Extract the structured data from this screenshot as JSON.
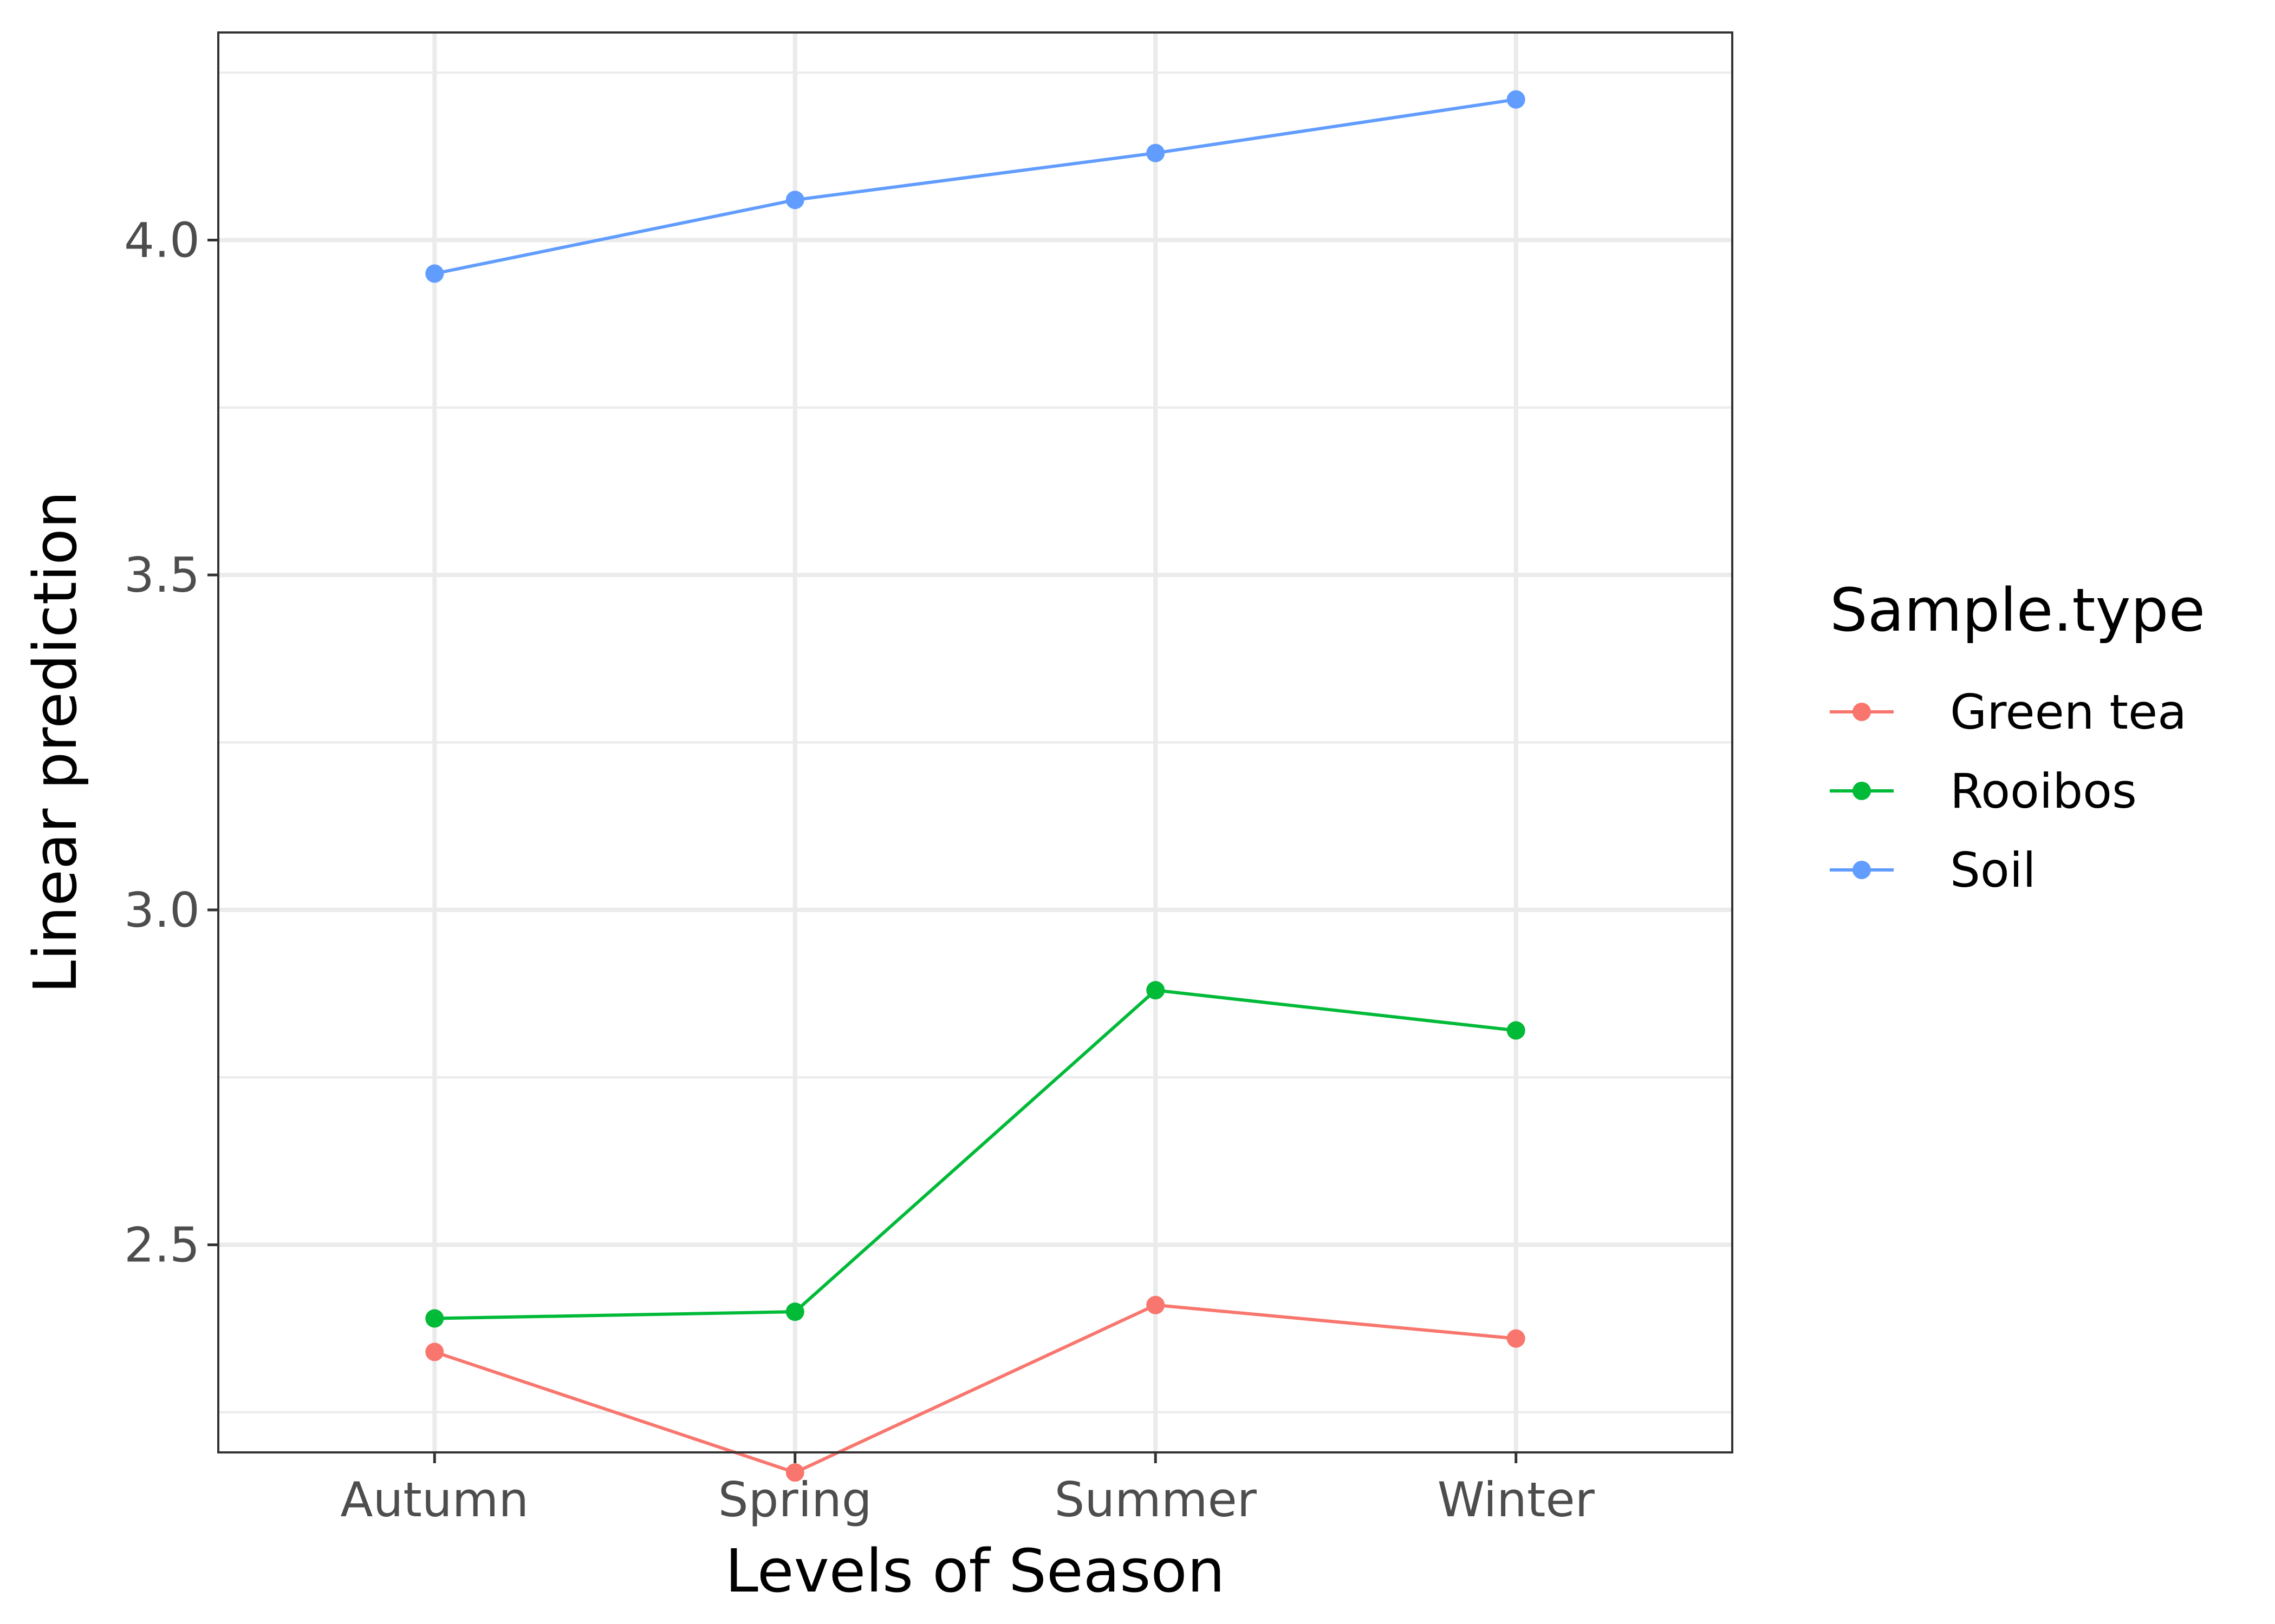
{
  "chart_data": {
    "type": "line",
    "xlabel": "Levels of Season",
    "ylabel": "Linear prediction",
    "categories": [
      "Autumn",
      "Spring",
      "Summer",
      "Winter"
    ],
    "ylim": [
      2.19,
      4.31
    ],
    "yticks": [
      2.5,
      3.0,
      3.5,
      4.0
    ],
    "ytick_labels": [
      "2.5",
      "3.0",
      "3.5",
      "4.0"
    ],
    "grid": true,
    "legend": {
      "title": "Sample.type",
      "position": "right"
    },
    "series": [
      {
        "name": "Green tea",
        "color": "#F8766D",
        "values": [
          2.34,
          2.16,
          2.41,
          2.36
        ]
      },
      {
        "name": "Rooibos",
        "color": "#00BA38",
        "values": [
          2.39,
          2.4,
          2.88,
          2.82
        ]
      },
      {
        "name": "Soil",
        "color": "#619CFF",
        "values": [
          3.95,
          4.06,
          4.13,
          4.21
        ]
      }
    ]
  }
}
